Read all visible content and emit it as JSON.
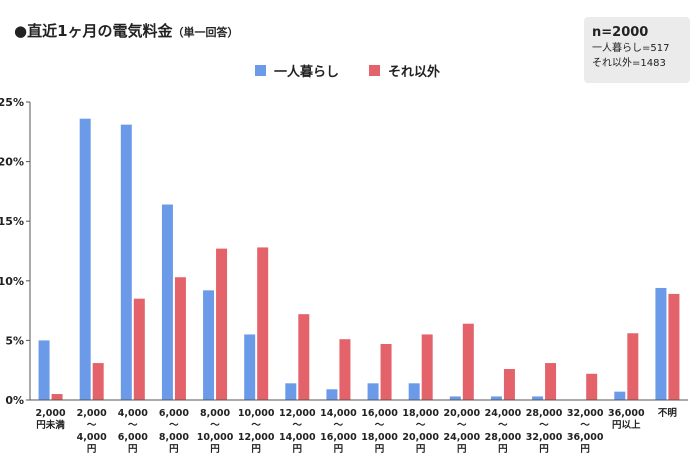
{
  "header": {
    "title_main": "●直近1ヶ月の電気料金",
    "title_paren": "（単一回答）"
  },
  "info_box": {
    "n": "n=2000",
    "line1": "一人暮らし=517",
    "line2": "それ以外=1483"
  },
  "colors": {
    "series1": "#6b9be8",
    "series2": "#e4636b",
    "axis": "#555555",
    "grid": "#dddddd"
  },
  "chart_data": {
    "type": "bar",
    "categories": [
      [
        "2,000",
        "円未満"
      ],
      [
        "2,000",
        "〜",
        "4,000",
        "円"
      ],
      [
        "4,000",
        "〜",
        "6,000",
        "円"
      ],
      [
        "6,000",
        "〜",
        "8,000",
        "円"
      ],
      [
        "8,000",
        "〜",
        "10,000",
        "円"
      ],
      [
        "10,000",
        "〜",
        "12,000",
        "円"
      ],
      [
        "12,000",
        "〜",
        "14,000",
        "円"
      ],
      [
        "14,000",
        "〜",
        "16,000",
        "円"
      ],
      [
        "16,000",
        "〜",
        "18,000",
        "円"
      ],
      [
        "18,000",
        "〜",
        "20,000",
        "円"
      ],
      [
        "20,000",
        "〜",
        "24,000",
        "円"
      ],
      [
        "24,000",
        "〜",
        "28,000",
        "円"
      ],
      [
        "28,000",
        "〜",
        "32,000",
        "円"
      ],
      [
        "32,000",
        "〜",
        "36,000",
        "円"
      ],
      [
        "36,000",
        "円以上"
      ],
      [
        "不明"
      ]
    ],
    "series": [
      {
        "name": "一人暮らし",
        "values": [
          5.0,
          23.6,
          23.1,
          16.4,
          9.2,
          5.5,
          1.4,
          0.9,
          1.4,
          1.4,
          0.3,
          0.3,
          0.3,
          0.0,
          0.7,
          9.4
        ]
      },
      {
        "name": "それ以外",
        "values": [
          0.5,
          3.1,
          8.5,
          10.3,
          12.7,
          12.8,
          7.2,
          5.1,
          4.7,
          5.5,
          6.4,
          2.6,
          3.1,
          2.2,
          5.6,
          8.9
        ]
      }
    ],
    "ylim": [
      0,
      25
    ],
    "yticks": [
      "0%",
      "5%",
      "10%",
      "15%",
      "20%",
      "25%"
    ],
    "ytick_values": [
      0,
      5,
      10,
      15,
      20,
      25
    ],
    "grid": false,
    "legend": "top-center"
  }
}
